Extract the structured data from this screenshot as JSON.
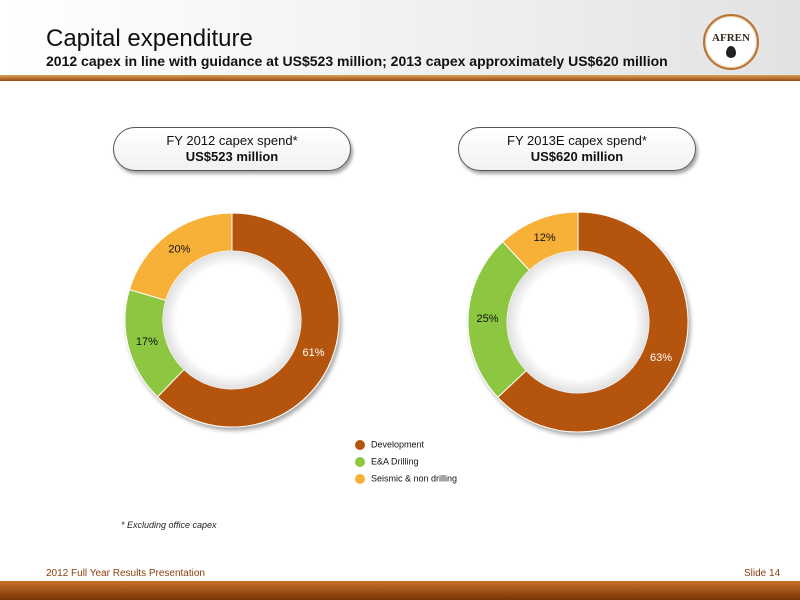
{
  "header": {
    "title": "Capital expenditure",
    "subtitle": "2012 capex in line with guidance at US$523 million; 2013 capex approximately US$620 million",
    "logo_text": "AFREN"
  },
  "boxes": [
    {
      "line1": "FY 2012 capex spend*",
      "line2": "US$523 million"
    },
    {
      "line1": "FY 2013E capex spend*",
      "line2": "US$620 million"
    }
  ],
  "chart_data": [
    {
      "type": "pie",
      "title": "FY 2012 capex spend*",
      "categories": [
        "Development",
        "E&A Drilling",
        "Seismic & non drilling"
      ],
      "values": [
        61,
        17,
        20
      ],
      "labels": [
        "61%",
        "17%",
        "20%"
      ],
      "colors": [
        "#b5540c",
        "#8dc63f",
        "#f7b038"
      ]
    },
    {
      "type": "pie",
      "title": "FY 2013E capex spend*",
      "categories": [
        "Development",
        "E&A Drilling",
        "Seismic & non drilling"
      ],
      "values": [
        63,
        25,
        12
      ],
      "labels": [
        "63%",
        "25%",
        "12%"
      ],
      "colors": [
        "#b5540c",
        "#8dc63f",
        "#f7b038"
      ]
    }
  ],
  "legend": [
    {
      "label": "Development",
      "color": "#b5540c"
    },
    {
      "label": "E&A Drilling",
      "color": "#8dc63f"
    },
    {
      "label": "Seismic & non drilling",
      "color": "#f7b038"
    }
  ],
  "footnote": "* Excluding office capex",
  "footer": {
    "left": "2012 Full Year Results Presentation",
    "right": "Slide 14"
  }
}
